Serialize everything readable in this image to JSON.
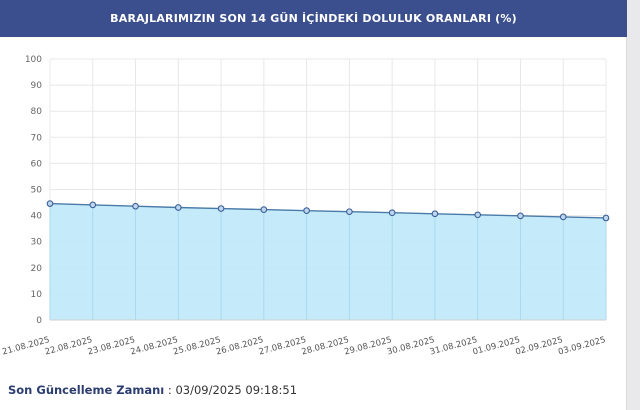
{
  "header": {
    "title": "BARAJLARIMIZIN SON 14 GÜN İÇİNDEKİ DOLULUK ORANLARI (%)"
  },
  "footer": {
    "label": "Son Güncelleme Zamanı",
    "separator": " : ",
    "value": "03/09/2025 09:18:51"
  },
  "colors": {
    "header_bg": "#3b4f8f",
    "line": "#4a7aa8",
    "fill": "#bfe9fb",
    "marker_fill": "#bcd6f0",
    "grid": "#e8e8e8"
  },
  "chart_data": {
    "type": "area",
    "title": "BARAJLARIMIZIN SON 14 GÜN İÇİNDEKİ DOLULUK ORANLARI (%)",
    "categories": [
      "21.08.2025",
      "22.08.2025",
      "23.08.2025",
      "24.08.2025",
      "25.08.2025",
      "26.08.2025",
      "27.08.2025",
      "28.08.2025",
      "29.08.2025",
      "30.08.2025",
      "31.08.2025",
      "01.09.2025",
      "02.09.2025",
      "03.09.2025"
    ],
    "series": [
      {
        "values": [
          44.6,
          44.1,
          43.6,
          43.1,
          42.7,
          42.3,
          41.9,
          41.5,
          41.1,
          40.7,
          40.3,
          39.9,
          39.5,
          39.1
        ]
      }
    ],
    "ylim": [
      0,
      100
    ],
    "yticks": [
      0,
      10,
      20,
      30,
      40,
      50,
      60,
      70,
      80,
      90,
      100
    ],
    "grid": true,
    "legend": "none"
  }
}
